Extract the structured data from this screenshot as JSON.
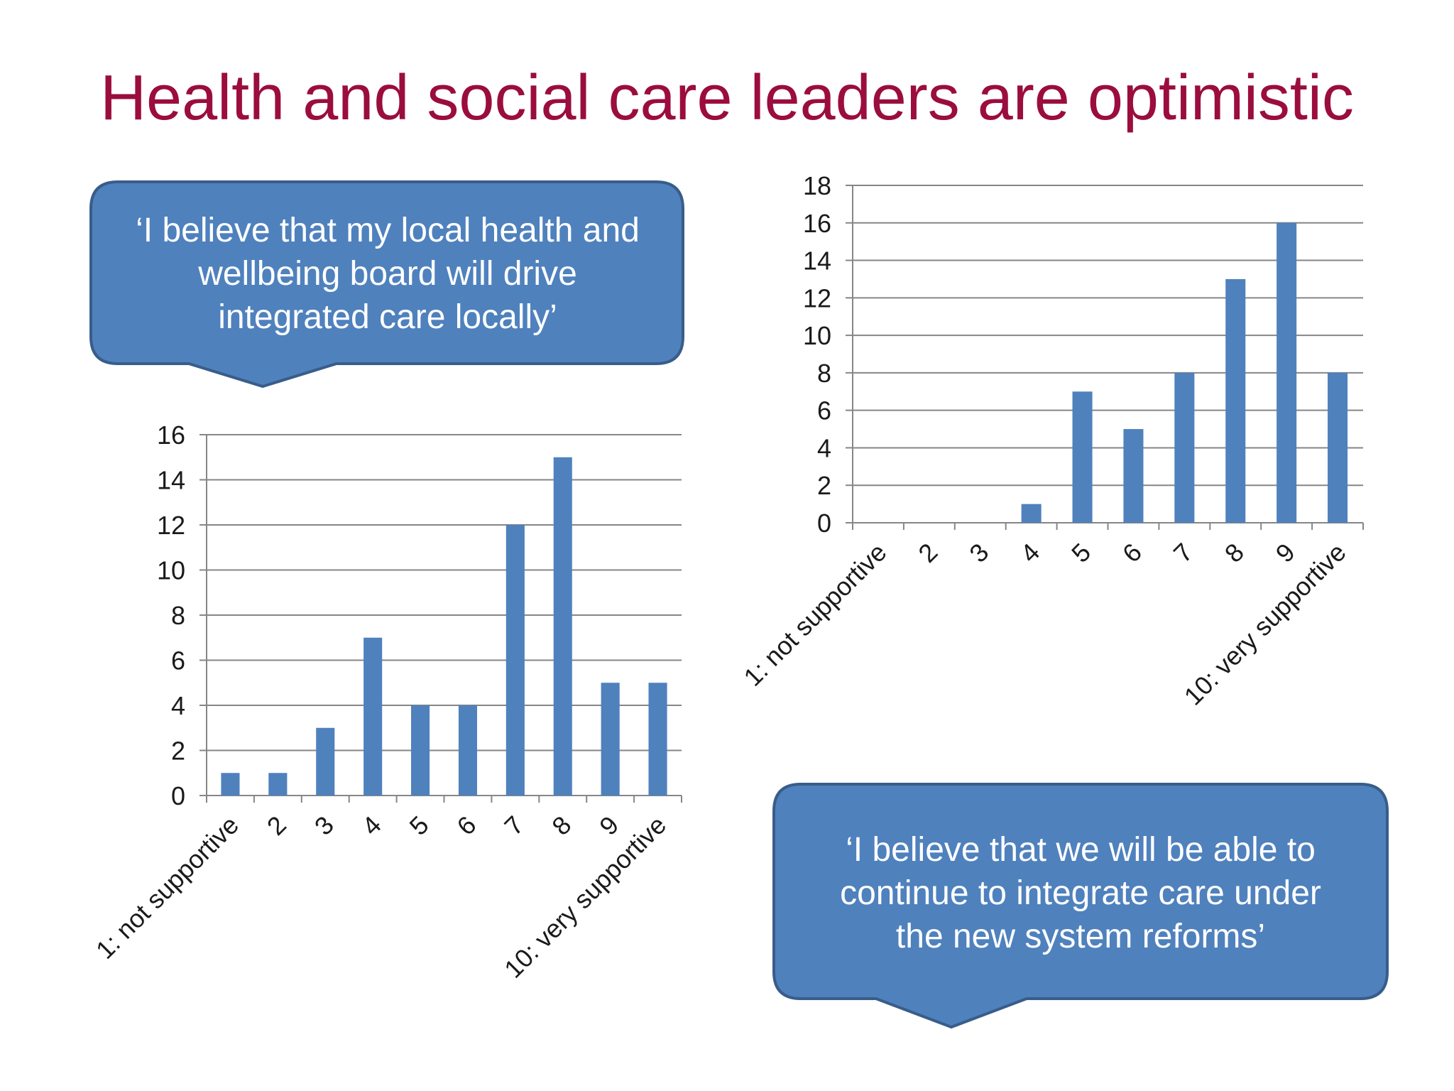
{
  "slide": {
    "title": "Health and social care leaders are optimistic"
  },
  "callouts": {
    "left": {
      "lines": [
        "‘I believe that my local health and",
        "wellbeing board will drive",
        "integrated care locally’"
      ]
    },
    "right": {
      "lines": [
        "‘I believe that we will be able to",
        "continue to integrate care under",
        "the new system reforms’"
      ]
    }
  },
  "colors": {
    "title": "#9b0d3e",
    "bar": "#4f81bd",
    "callout_fill": "#4f81bd",
    "callout_stroke": "#385d8a",
    "gridline": "#868686"
  },
  "chart_data": [
    {
      "type": "bar",
      "categories": [
        "1: not supportive",
        "2",
        "3",
        "4",
        "5",
        "6",
        "7",
        "8",
        "9",
        "10: very supportive"
      ],
      "values": [
        1,
        1,
        3,
        7,
        4,
        4,
        12,
        15,
        5,
        5
      ],
      "ylim": [
        0,
        16
      ],
      "yticks": [
        0,
        2,
        4,
        6,
        8,
        10,
        12,
        14,
        16
      ],
      "grid": true
    },
    {
      "type": "bar",
      "categories": [
        "1: not supportive",
        "2",
        "3",
        "4",
        "5",
        "6",
        "7",
        "8",
        "9",
        "10: very supportive"
      ],
      "values": [
        0,
        0,
        0,
        1,
        7,
        5,
        8,
        13,
        16,
        8
      ],
      "ylim": [
        0,
        18
      ],
      "yticks": [
        0,
        2,
        4,
        6,
        8,
        10,
        12,
        14,
        16,
        18
      ],
      "grid": true
    }
  ]
}
